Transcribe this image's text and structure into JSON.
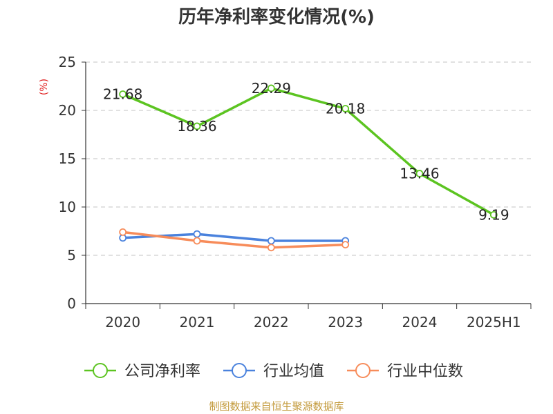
{
  "chart_data": {
    "type": "line",
    "title": "历年净利率变化情况(%)",
    "ylabel": "(%)",
    "xlabel": "",
    "categories": [
      "2020",
      "2021",
      "2022",
      "2023",
      "2024",
      "2025H1"
    ],
    "ylim": [
      0,
      25
    ],
    "yticks": [
      0,
      5,
      10,
      15,
      20,
      25
    ],
    "grid": true,
    "legend_position": "bottom",
    "series": [
      {
        "name": "公司净利率",
        "color": "#5cc421",
        "values": [
          21.68,
          18.36,
          22.29,
          20.18,
          13.46,
          9.19
        ],
        "labels": [
          "21.68",
          "18.36",
          "22.29",
          "20.18",
          "13.46",
          "9.19"
        ]
      },
      {
        "name": "行业均值",
        "color": "#4a82dd",
        "values": [
          6.8,
          7.2,
          6.5,
          6.5,
          null,
          null
        ]
      },
      {
        "name": "行业中位数",
        "color": "#f78c5a",
        "values": [
          7.4,
          6.5,
          5.8,
          6.1,
          null,
          null
        ]
      }
    ]
  },
  "source": "制图数据来自恒生聚源数据库"
}
